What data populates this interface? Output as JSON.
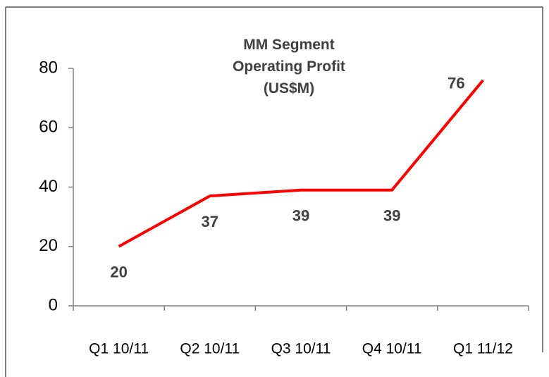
{
  "chart_data": {
    "type": "line",
    "title": "MM Segment Operating Profit (US$M)",
    "categories": [
      "Q1 10/11",
      "Q2 10/11",
      "Q3 10/11",
      "Q4 10/11",
      "Q1 11/12"
    ],
    "values": [
      20,
      37,
      39,
      39,
      76
    ],
    "color": "#ff0000",
    "ylim": [
      0,
      80
    ],
    "yticks": [
      0,
      20,
      40,
      60,
      80
    ],
    "grid": false
  }
}
